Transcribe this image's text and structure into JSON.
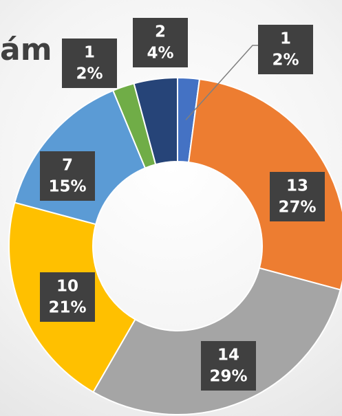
{
  "chart_data": {
    "type": "donut",
    "title": "ám",
    "values": [
      1,
      13,
      14,
      10,
      7,
      1,
      2
    ],
    "percentages": [
      2,
      27,
      29,
      21,
      15,
      2,
      4
    ],
    "percentage_labels": [
      "2%",
      "27%",
      "29%",
      "21%",
      "15%",
      "2%",
      "4%"
    ],
    "colors": [
      "#4472c4",
      "#ed7d31",
      "#a5a5a5",
      "#ffc000",
      "#5b9bd5",
      "#70ad47",
      "#264478"
    ]
  }
}
